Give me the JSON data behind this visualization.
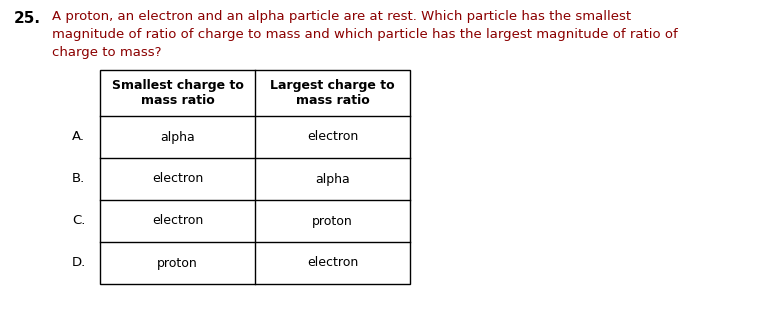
{
  "question_number": "25.",
  "question_text_line1": "A proton, an electron and an alpha particle are at rest. Which particle has the smallest",
  "question_text_line2": "magnitude of ratio of charge to mass and which particle has the largest magnitude of ratio of",
  "question_text_line3": "charge to mass?",
  "question_color": "#8B0000",
  "number_color": "#000000",
  "header_col1": "Smallest charge to\nmass ratio",
  "header_col2": "Largest charge to\nmass ratio",
  "rows": [
    {
      "label": "A.",
      "col1": "alpha",
      "col2": "electron"
    },
    {
      "label": "B.",
      "col1": "electron",
      "col2": "alpha"
    },
    {
      "label": "C.",
      "col1": "electron",
      "col2": "proton"
    },
    {
      "label": "D.",
      "col1": "proton",
      "col2": "electron"
    }
  ],
  "label_color": "#000000",
  "cell_text_color": "#000000",
  "bg_color": "#ffffff",
  "table_line_color": "#000000",
  "font_size_question": 9.5,
  "font_size_header": 9.0,
  "font_size_cell": 9.0,
  "font_size_label": 9.5,
  "font_size_number": 11
}
